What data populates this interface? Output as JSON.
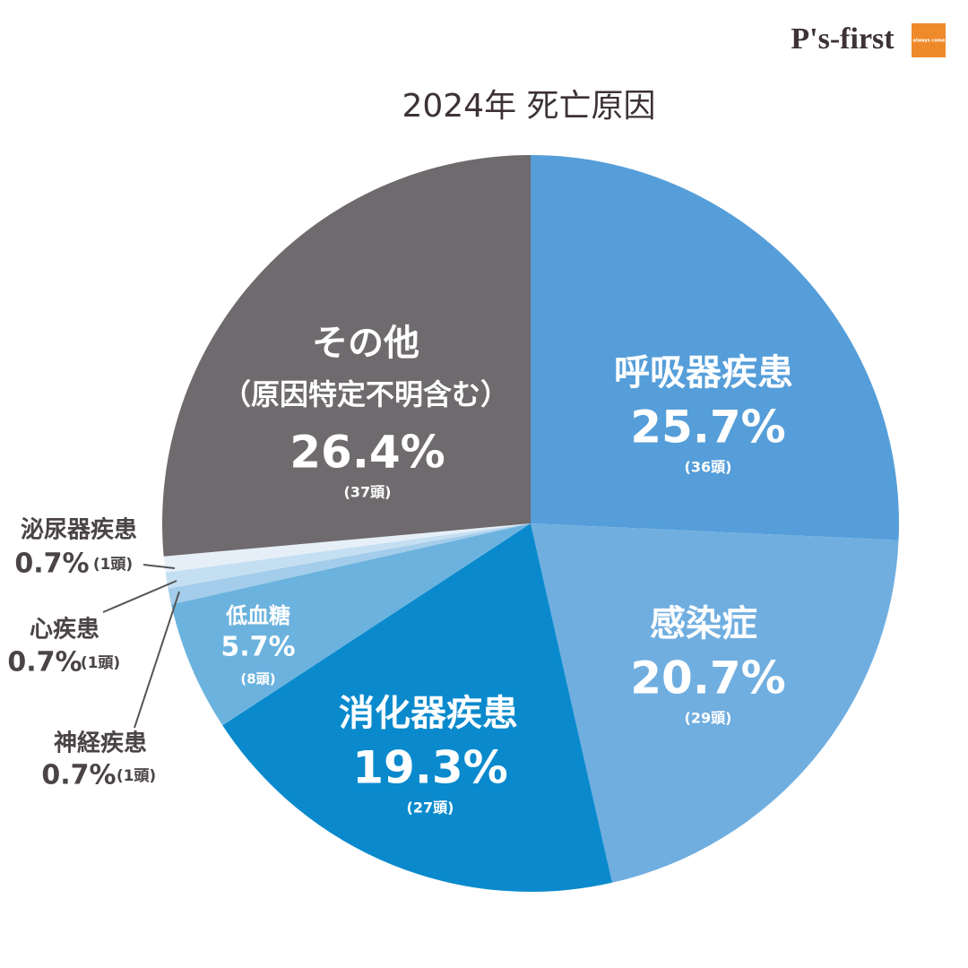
{
  "chart_data": {
    "type": "pie",
    "title": "2024年 死亡原因",
    "logo": "P's-first",
    "logo_badge": "Pets always come first",
    "categories": [
      "呼吸器疾患",
      "感染症",
      "消化器疾患",
      "低血糖",
      "神経疾患",
      "心疾患",
      "泌尿器疾患",
      "その他"
    ],
    "values": [
      25.7,
      20.7,
      19.3,
      5.7,
      0.7,
      0.7,
      0.7,
      26.4
    ],
    "value_labels": [
      "25.7%",
      "20.7%",
      "19.3%",
      "5.7%",
      "0.7%",
      "0.7%",
      "0.7%",
      "26.4%"
    ],
    "count_labels": [
      "(36頭)",
      "(29頭)",
      "(27頭)",
      "(8頭)",
      "(1頭)",
      "(1頭)",
      "(1頭)",
      "(37頭)"
    ],
    "colors": [
      "#559ed9",
      "#70aee0",
      "#0a8acd",
      "#6bb3de",
      "#a3cdea",
      "#c5dff2",
      "#e6eff8",
      "#6e6a6d"
    ],
    "annotations": [
      {
        "category": 7,
        "text": "（原因特定不明含む）"
      }
    ]
  }
}
